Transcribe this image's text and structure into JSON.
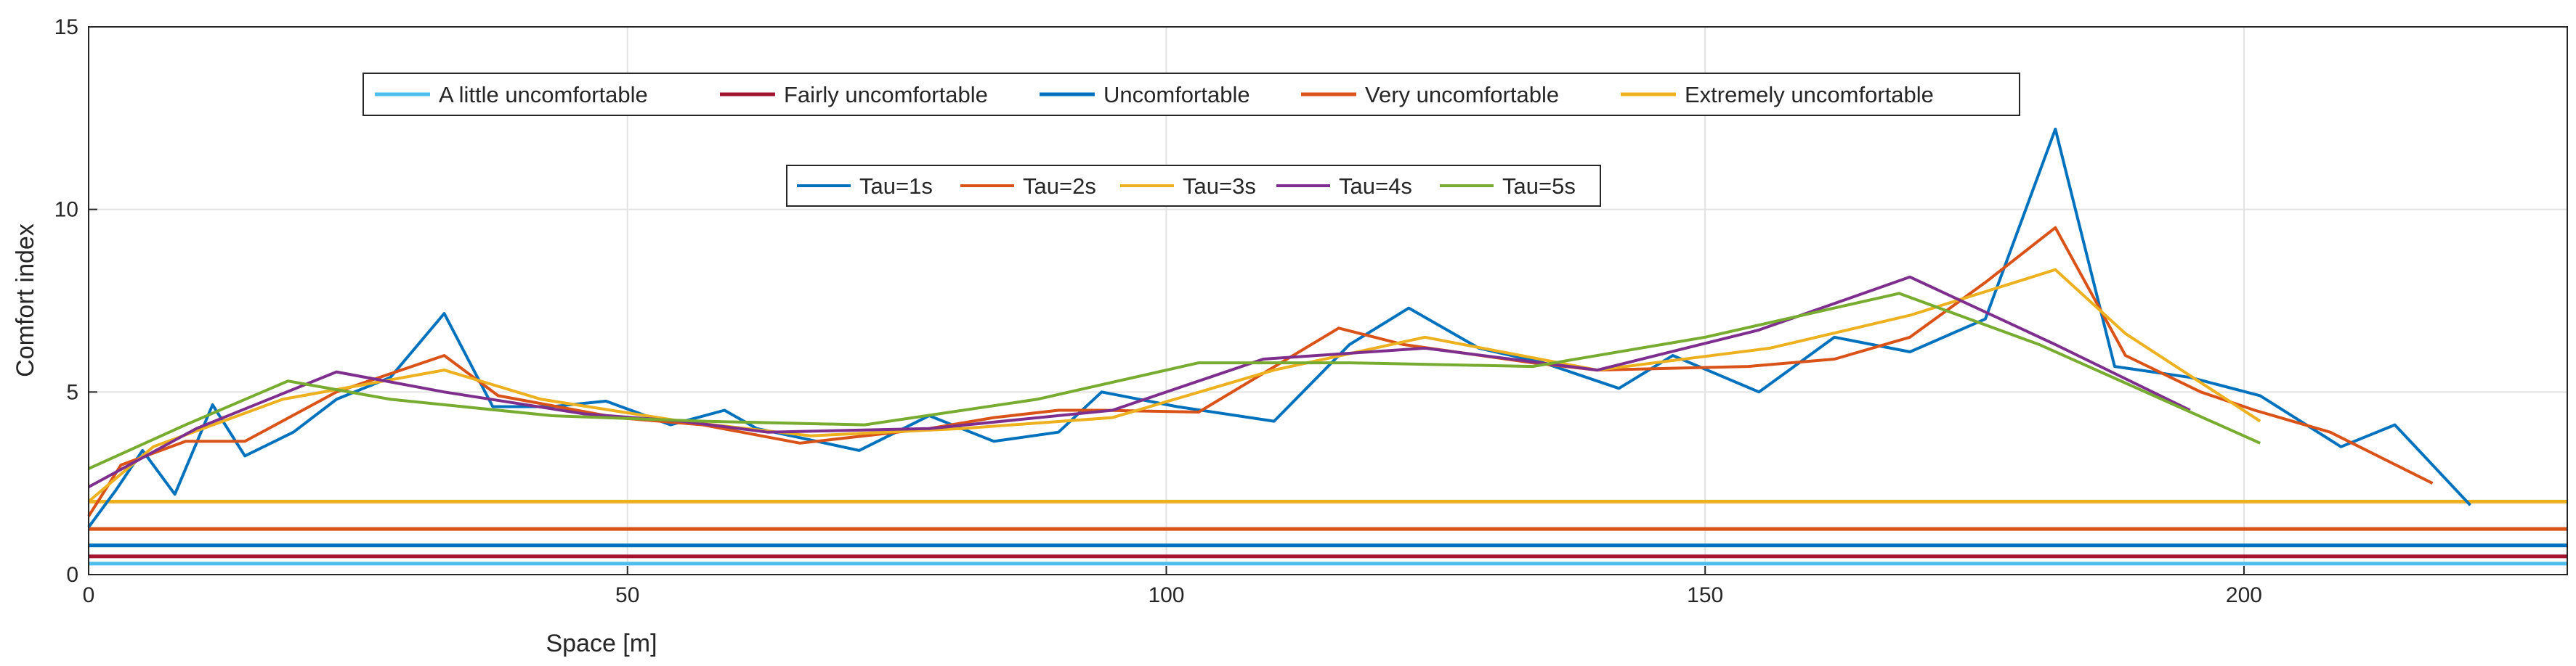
{
  "chart_data": {
    "type": "line",
    "title": "",
    "xlabel": "Space [m]",
    "ylabel": "Comfort index",
    "xlim": [
      0,
      230
    ],
    "ylim": [
      0,
      15
    ],
    "xticks": [
      0,
      50,
      100,
      150,
      200
    ],
    "yticks": [
      0,
      5,
      10,
      15
    ],
    "grid": true,
    "threshold_legend_position": "top",
    "series_legend_position": "upper-middle",
    "thresholds": [
      {
        "name": "A little uncomfortable",
        "value": 0.3,
        "color": "#4DBEEE"
      },
      {
        "name": "Fairly uncomfortable",
        "value": 0.5,
        "color": "#A2142F"
      },
      {
        "name": "Uncomfortable",
        "value": 0.8,
        "color": "#0072BD"
      },
      {
        "name": "Very uncomfortable",
        "value": 1.25,
        "color": "#D95319"
      },
      {
        "name": "Extremely uncomfortable",
        "value": 2.0,
        "color": "#EDB120"
      }
    ],
    "series": [
      {
        "name": "Tau=1s",
        "color": "#0072BD",
        "x": [
          0,
          2.5,
          5,
          8,
          11.5,
          14.5,
          19,
          23,
          28,
          33,
          37.5,
          43,
          48,
          54,
          59,
          62,
          66,
          71.5,
          78,
          84,
          90,
          94,
          101,
          110,
          117,
          122.5,
          129,
          135,
          142,
          147,
          155,
          162,
          169,
          176,
          182.5,
          188,
          195,
          201.5,
          209,
          214,
          217.5,
          221
        ],
        "values": [
          1.3,
          2.3,
          3.4,
          2.2,
          4.65,
          3.25,
          3.9,
          4.8,
          5.4,
          7.15,
          4.6,
          4.6,
          4.75,
          4.1,
          4.5,
          4.0,
          3.75,
          3.4,
          4.35,
          3.65,
          3.9,
          5.0,
          4.6,
          4.2,
          6.3,
          7.3,
          6.2,
          5.8,
          5.1,
          6.0,
          5.0,
          6.5,
          6.1,
          7.0,
          12.2,
          5.7,
          5.4,
          4.9,
          3.5,
          4.1,
          3.0,
          1.9
        ]
      },
      {
        "name": "Tau=2s",
        "color": "#D95319",
        "x": [
          0,
          3,
          9,
          14.5,
          23,
          33,
          38,
          49,
          57,
          66,
          78,
          84,
          90,
          94,
          103,
          116,
          122,
          134,
          140,
          154,
          162,
          169,
          176,
          182.5,
          189,
          196,
          201,
          208,
          217.5
        ],
        "values": [
          1.6,
          3.0,
          3.65,
          3.65,
          5.0,
          6.0,
          4.9,
          4.3,
          4.1,
          3.6,
          4.0,
          4.3,
          4.5,
          4.5,
          4.45,
          6.75,
          6.3,
          5.8,
          5.6,
          5.7,
          5.9,
          6.5,
          8.0,
          9.5,
          6.0,
          5.0,
          4.5,
          3.9,
          2.5
        ]
      },
      {
        "name": "Tau=3s",
        "color": "#EDB120",
        "x": [
          0,
          6,
          18,
          33,
          42,
          55,
          67,
          81,
          95,
          110,
          124,
          140,
          156,
          169,
          182.5,
          189,
          201.5
        ],
        "values": [
          2.0,
          3.5,
          4.8,
          5.6,
          4.8,
          4.2,
          3.8,
          4.0,
          4.3,
          5.6,
          6.5,
          5.6,
          6.2,
          7.1,
          8.35,
          6.6,
          4.2
        ]
      },
      {
        "name": "Tau=4s",
        "color": "#7E2F8E",
        "x": [
          0,
          10,
          23,
          33,
          46,
          55,
          63,
          78,
          95,
          109,
          124,
          140,
          155,
          169,
          182.5,
          195
        ],
        "values": [
          2.4,
          4.0,
          5.55,
          5.0,
          4.4,
          4.2,
          3.9,
          4.0,
          4.5,
          5.9,
          6.2,
          5.6,
          6.7,
          8.15,
          6.3,
          4.5
        ]
      },
      {
        "name": "Tau=5s",
        "color": "#77AC30",
        "x": [
          0,
          9,
          18.5,
          28,
          43,
          57,
          72,
          88,
          103,
          117,
          134,
          150,
          168,
          181,
          201.5
        ],
        "values": [
          2.9,
          4.1,
          5.3,
          4.8,
          4.35,
          4.2,
          4.1,
          4.8,
          5.8,
          5.8,
          5.7,
          6.5,
          7.7,
          6.3,
          3.6
        ]
      }
    ]
  }
}
